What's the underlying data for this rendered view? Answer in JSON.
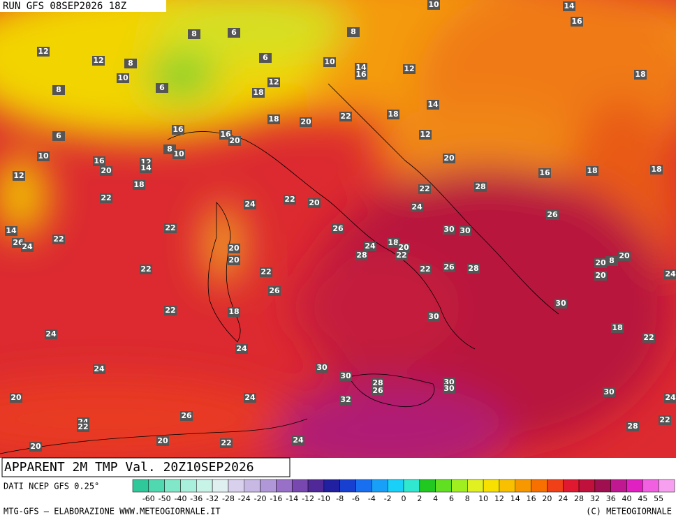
{
  "header": {
    "run": "RUN GFS 08SEP2026 18Z"
  },
  "map": {
    "title": "APPARENT 2M TMP Val. 20Z10SEP2026",
    "contour_labels": [
      10,
      14,
      16,
      8,
      6,
      8,
      12,
      12,
      8,
      6,
      10,
      14,
      16,
      12,
      10,
      8,
      6,
      18,
      12,
      18,
      14,
      18,
      22,
      18,
      20,
      16,
      6,
      16,
      20,
      12,
      8,
      10,
      10,
      16,
      12,
      14,
      20,
      20,
      16,
      18,
      18,
      12,
      18,
      22,
      28,
      22,
      24,
      22,
      20,
      24,
      26,
      22,
      26,
      30,
      30,
      14,
      26,
      24,
      22,
      20,
      20,
      24,
      18,
      20,
      22,
      28,
      22,
      22,
      22,
      26,
      28,
      20,
      20,
      8,
      20,
      24,
      26,
      30,
      22,
      18,
      30,
      18,
      22,
      24,
      24,
      24,
      30,
      30,
      28,
      26,
      30,
      30,
      30,
      20,
      24,
      24,
      32,
      26,
      24,
      22,
      28,
      22,
      20,
      22,
      24,
      20
    ]
  },
  "colorbar": {
    "labels": [
      -60,
      -50,
      -40,
      -36,
      -32,
      -28,
      -24,
      -20,
      -16,
      -14,
      -12,
      -10,
      -8,
      -6,
      -4,
      -2,
      0,
      2,
      4,
      6,
      8,
      10,
      12,
      14,
      16,
      20,
      24,
      28,
      32,
      36,
      40,
      45,
      55
    ]
  },
  "footer": {
    "source": "DATI NCEP GFS 0.25°",
    "credit": "MTG-GFS — ELABORAZIONE WWW.METEOGIORNALE.IT",
    "copyright": "(C) METEOGIORNALE"
  }
}
